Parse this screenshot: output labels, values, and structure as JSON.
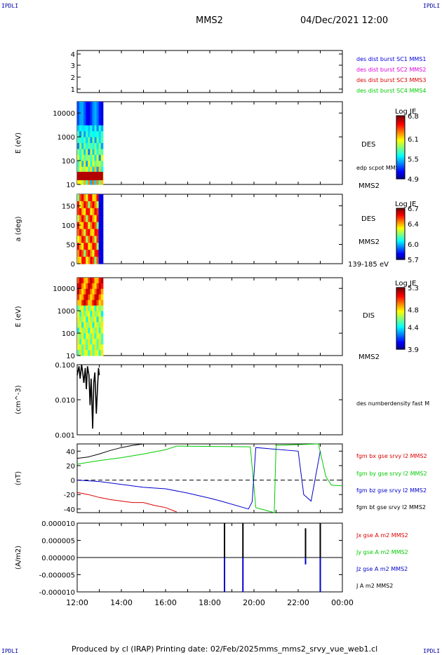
{
  "corner_marks": {
    "tl": "IPDLI",
    "tr": "IPDLI",
    "bl": "IPDLI",
    "br": "IPDLI"
  },
  "header": {
    "spacecraft": "MMS2",
    "datetime": "04/Dec/2021 12:00"
  },
  "footer": {
    "produced_by": "Produced by cl (IRAP)",
    "printing_date": "Printing date: 02/Feb/2025",
    "filename": "mms_mms2_srvy_vue_web1.cl"
  },
  "colors": {
    "mms1": "#0000dd",
    "mms2": "#dd00dd",
    "mms3": "#dd0000",
    "mms4": "#00cc00",
    "bx": "#dd0000",
    "by": "#00cc00",
    "bz": "#0000cc",
    "bt": "#000000"
  },
  "chart_data": [
    {
      "type": "table",
      "panel": "burst availability",
      "yticks": [
        "4",
        "3",
        "2",
        "1"
      ],
      "legend": [
        "des dist burst SC1 MMS1",
        "des dist burst SC2 MMS2",
        "des dist burst SC3 MMS3",
        "des dist burst SC4 MMS4"
      ]
    },
    {
      "type": "heatmap",
      "panel": "DES energy spectrogram",
      "ylabel": "E (eV)",
      "scale": "log",
      "ylim": [
        10,
        30000
      ],
      "yticks": [
        "10000",
        "1000",
        "100",
        "10"
      ],
      "data_end_time": "13:10",
      "label": "DES",
      "overlay_label": "edp scpot MMS2",
      "sc_label": "MMS2",
      "colorbar": {
        "title": "Log JE",
        "ticks": [
          "6.8",
          "6.1",
          "5.5",
          "4.9"
        ],
        "range": [
          4.9,
          6.8
        ]
      }
    },
    {
      "type": "heatmap",
      "panel": "DES pitch angle",
      "ylabel": "a (deg)",
      "ylim": [
        0,
        180
      ],
      "yticks": [
        "150",
        "100",
        "50",
        "0"
      ],
      "data_end_time": "13:10",
      "label": "DES",
      "sc_label": "MMS2",
      "energy_label": "139-185 eV",
      "colorbar": {
        "title": "Log JE",
        "ticks": [
          "6.7",
          "6.4",
          "6.0",
          "5.7"
        ],
        "range": [
          5.7,
          6.7
        ]
      }
    },
    {
      "type": "heatmap",
      "panel": "DIS energy spectrogram",
      "ylabel": "E (eV)",
      "scale": "log",
      "ylim": [
        10,
        30000
      ],
      "yticks": [
        "10000",
        "1000",
        "100",
        "10"
      ],
      "data_end_time": "13:10",
      "label": "DIS",
      "sc_label": "MMS2",
      "colorbar": {
        "title": "Log JE",
        "ticks": [
          "5.3",
          "4.8",
          "4.4",
          "3.9"
        ],
        "range": [
          3.9,
          5.3
        ]
      }
    },
    {
      "type": "line",
      "panel": "density",
      "ylabel": "(cm^-3)",
      "scale": "log",
      "ylim": [
        0.001,
        0.1
      ],
      "yticks": [
        "0.100",
        "0.010",
        "0.001"
      ],
      "legend": [
        "des numberdensity fast M"
      ],
      "series": [
        {
          "name": "des numberdensity fast M",
          "x": [
            "12:00",
            "12:05",
            "12:08",
            "12:12",
            "12:15",
            "12:18",
            "12:22",
            "12:25",
            "12:28",
            "12:32",
            "12:35",
            "12:38",
            "12:42",
            "12:45",
            "12:48",
            "12:52",
            "12:55",
            "12:58",
            "13:00"
          ],
          "values": [
            0.05,
            0.09,
            0.04,
            0.1,
            0.06,
            0.03,
            0.08,
            0.02,
            0.09,
            0.05,
            0.007,
            0.04,
            0.0015,
            0.03,
            0.06,
            0.004,
            0.02,
            0.08,
            0.05
          ]
        }
      ]
    },
    {
      "type": "line",
      "panel": "magnetic field",
      "ylabel": "(nT)",
      "ylim": [
        -45,
        50
      ],
      "yticks": [
        "40",
        "20",
        "0",
        "-20",
        "-40"
      ],
      "legend": [
        "fgm bx gse srvy l2 MMS2",
        "fgm by gse srvy l2 MMS2",
        "fgm bz gse srvy l2 MMS2",
        "fgm bt gse srvy l2 MMS2"
      ],
      "series": [
        {
          "name": "fgm bx gse srvy l2 MMS2",
          "x": [
            "12:00",
            "12:30",
            "13:00",
            "13:30",
            "14:00",
            "14:30",
            "15:00",
            "15:30",
            "16:00",
            "16:30"
          ],
          "values": [
            -17,
            -20,
            -24,
            -27,
            -29,
            -31,
            -31,
            -35,
            -38,
            -44
          ]
        },
        {
          "name": "fgm by gse srvy l2 MMS2",
          "x": [
            "12:00",
            "13:00",
            "14:00",
            "15:00",
            "16:00",
            "16:30",
            "19:50",
            "20:05",
            "20:55",
            "21:00",
            "22:55",
            "23:15",
            "23:30",
            "00:00"
          ],
          "values": [
            22,
            27,
            31,
            36,
            42,
            47,
            46,
            -38,
            -45,
            48,
            50,
            5,
            -7,
            -8
          ]
        },
        {
          "name": "fgm bz gse srvy l2 MMS2",
          "x": [
            "12:00",
            "13:00",
            "14:00",
            "15:00",
            "16:00",
            "17:00",
            "18:00",
            "18:30",
            "19:45",
            "19:55",
            "20:05",
            "22:00",
            "22:15",
            "22:35",
            "23:00"
          ],
          "values": [
            0,
            -2,
            -6,
            -10,
            -12,
            -18,
            -25,
            -29,
            -40,
            -30,
            45,
            40,
            -20,
            -29,
            40
          ]
        },
        {
          "name": "fgm bt gse srvy l2 MMS2",
          "x": [
            "12:00",
            "12:30",
            "13:00",
            "13:30",
            "14:00",
            "14:30",
            "15:00"
          ],
          "values": [
            30,
            32,
            36,
            41,
            45,
            48,
            50
          ]
        }
      ]
    },
    {
      "type": "line",
      "panel": "current density",
      "ylabel": "(A/m2)",
      "ylim": [
        -1e-05,
        1e-05
      ],
      "yticks": [
        "0.000010",
        "0.000005",
        "0.000000",
        "-0.000005",
        "-0.000010"
      ],
      "xticks": [
        "12:00",
        "14:00",
        "16:00",
        "18:00",
        "20:00",
        "22:00",
        "00:00"
      ],
      "legend": [
        "Jx gse A m2 MMS2",
        "Jy gse A m2 MMS2",
        "Jz gse A m2 MMS2",
        "J A m2 MMS2"
      ],
      "series": [
        {
          "name": "J A m2 MMS2",
          "x": [
            "18:40",
            "19:30",
            "22:20",
            "23:00"
          ],
          "values": [
            1.05e-05,
            1.08e-05,
            8.5e-06,
            1.05e-05
          ]
        },
        {
          "name": "Jz gse A m2 MMS2",
          "x": [
            "18:40",
            "19:30",
            "22:20",
            "23:00"
          ],
          "values": [
            -1.1e-05,
            -1.1e-05,
            -2e-06,
            -1.1e-05
          ]
        }
      ]
    }
  ]
}
